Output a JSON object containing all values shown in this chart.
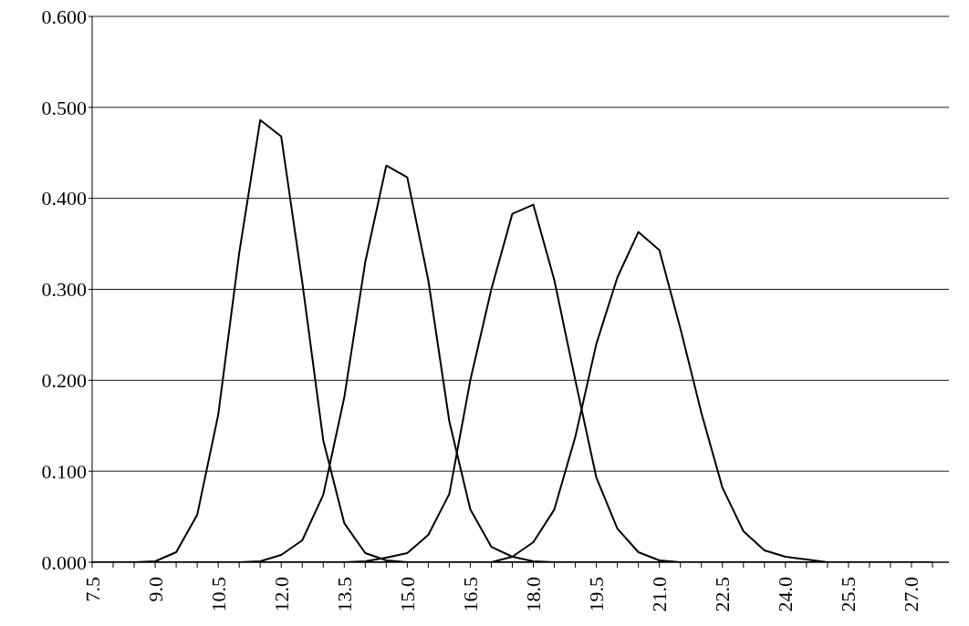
{
  "chart_data": {
    "type": "line",
    "categories": [
      "7.5",
      null,
      null,
      "9.0",
      null,
      null,
      "10.5",
      null,
      null,
      "12.0",
      null,
      null,
      "13.5",
      null,
      null,
      "15.0",
      null,
      null,
      "16.5",
      null,
      null,
      "18.0",
      null,
      null,
      "19.5",
      null,
      null,
      "21.0",
      null,
      null,
      "22.5",
      null,
      null,
      "24.0",
      null,
      null,
      "25.5",
      null,
      null,
      "27.0",
      null
    ],
    "series": [
      {
        "color": "#000000",
        "values": [
          0,
          0,
          0,
          0.001,
          0.011,
          0.052,
          0.162,
          0.34,
          0.486,
          0.468,
          0.308,
          0.134,
          0.043,
          0.01,
          0.002,
          0,
          0,
          0,
          0,
          0,
          0,
          0,
          0,
          0,
          0,
          0,
          0,
          0,
          0,
          0,
          0,
          0,
          0,
          0,
          0,
          0,
          0,
          0,
          0,
          0,
          0
        ]
      },
      {
        "color": "#000000",
        "values": [
          0,
          0,
          0,
          0,
          0,
          0,
          0,
          0,
          0.001,
          0.008,
          0.024,
          0.074,
          0.181,
          0.33,
          0.436,
          0.423,
          0.31,
          0.155,
          0.058,
          0.017,
          0.006,
          0.001,
          0,
          0,
          0,
          0,
          0,
          0,
          0,
          0,
          0,
          0,
          0,
          0,
          0,
          0,
          0,
          0,
          0,
          0,
          0
        ]
      },
      {
        "color": "#000000",
        "values": [
          0,
          0,
          0,
          0,
          0,
          0,
          0,
          0,
          0,
          0,
          0,
          0,
          0,
          0.001,
          0.005,
          0.01,
          0.03,
          0.075,
          0.2,
          0.3,
          0.383,
          0.393,
          0.31,
          0.2,
          0.093,
          0.037,
          0.011,
          0.002,
          0,
          0,
          0,
          0,
          0,
          0,
          0,
          0,
          0,
          0,
          0,
          0,
          0
        ]
      },
      {
        "color": "#000000",
        "values": [
          0,
          0,
          0,
          0,
          0,
          0,
          0,
          0,
          0,
          0,
          0,
          0,
          0,
          0,
          0,
          0,
          0,
          0,
          0,
          0,
          0.006,
          0.022,
          0.058,
          0.138,
          0.24,
          0.313,
          0.363,
          0.343,
          0.257,
          0.164,
          0.082,
          0.034,
          0.013,
          0.006,
          0.003,
          0,
          0,
          0,
          0,
          0,
          0
        ]
      }
    ],
    "ylim": [
      0,
      0.6
    ],
    "yticks": [
      {
        "value": 0,
        "label": "0.000"
      },
      {
        "value": 0.1,
        "label": "0.100"
      },
      {
        "value": 0.2,
        "label": "0.200"
      },
      {
        "value": 0.3,
        "label": "0.300"
      },
      {
        "value": 0.4,
        "label": "0.400"
      },
      {
        "value": 0.5,
        "label": "0.500"
      },
      {
        "value": 0.6,
        "label": "0.600"
      }
    ],
    "grid": "y",
    "legend": false,
    "marker": "none",
    "line_style": "solid"
  }
}
